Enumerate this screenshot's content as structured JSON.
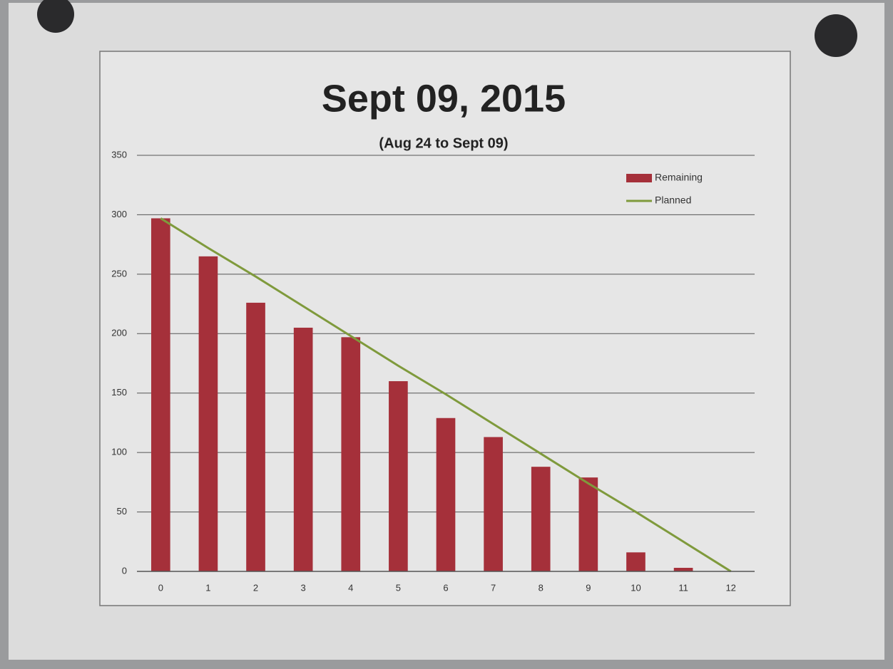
{
  "chart_data": {
    "type": "bar",
    "title": "Sept 09, 2015",
    "subtitle": "(Aug 24 to Sept 09)",
    "categories": [
      "0",
      "1",
      "2",
      "3",
      "4",
      "5",
      "6",
      "7",
      "8",
      "9",
      "10",
      "11",
      "12"
    ],
    "series": [
      {
        "name": "Remaining",
        "type": "bar",
        "color": "#a5303a",
        "values": [
          297,
          265,
          226,
          205,
          197,
          160,
          129,
          113,
          88,
          79,
          16,
          3,
          null
        ]
      },
      {
        "name": "Planned",
        "type": "line",
        "color": "#7f9a3c",
        "values": [
          297,
          272,
          248,
          223,
          198,
          173,
          149,
          124,
          99,
          74,
          50,
          25,
          0
        ]
      }
    ],
    "ylim": [
      0,
      350
    ],
    "yticks": [
      0,
      50,
      100,
      150,
      200,
      250,
      300,
      350
    ],
    "grid": true,
    "legend": "top-right"
  }
}
